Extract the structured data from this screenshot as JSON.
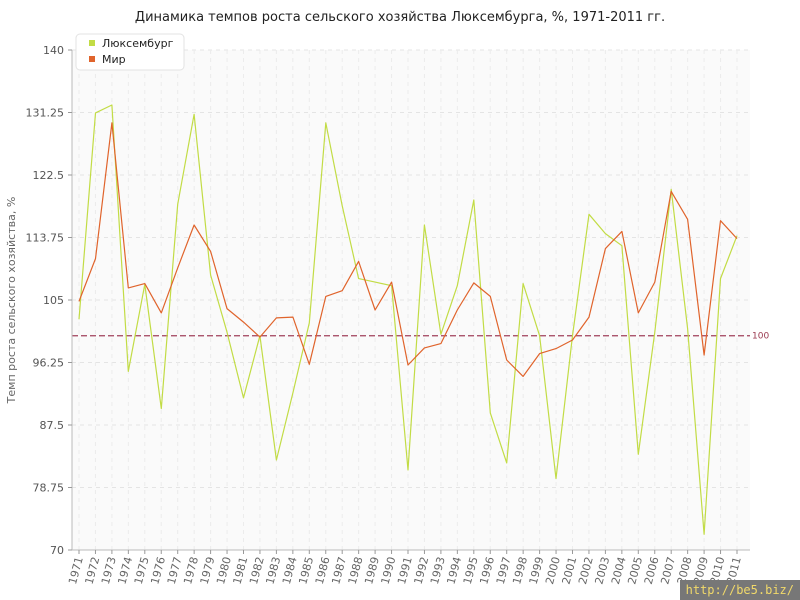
{
  "chart_data": {
    "type": "line",
    "title": "Динамика темпов роста сельского хозяйства Люксембурга, %, 1971-2011 гг.",
    "xlabel": "",
    "ylabel": "Темп роста сельского хозяйства, %",
    "ylim": [
      70,
      140
    ],
    "yticks": [
      "70",
      "78.75",
      "87.5",
      "96.25",
      "105",
      "113.75",
      "122.5",
      "131.25",
      "140"
    ],
    "grid": true,
    "legend_position": "top-left",
    "reference_line": {
      "value": 100,
      "label": "100"
    },
    "x": [
      "1971",
      "1972",
      "1973",
      "1974",
      "1975",
      "1976",
      "1977",
      "1978",
      "1979",
      "1980",
      "1981",
      "1982",
      "1983",
      "1984",
      "1985",
      "1986",
      "1987",
      "1988",
      "1989",
      "1990",
      "1991",
      "1992",
      "1993",
      "1994",
      "1995",
      "1996",
      "1997",
      "1998",
      "1999",
      "2000",
      "2001",
      "2002",
      "2003",
      "2004",
      "2005",
      "2006",
      "2007",
      "2008",
      "2009",
      "2010",
      "2011"
    ],
    "series": [
      {
        "name": "Люксембург",
        "color": "#c2dc45",
        "values": [
          102.3,
          131.2,
          132.3,
          95.0,
          107.2,
          89.8,
          118.4,
          131.0,
          108.5,
          100.5,
          91.3,
          100.0,
          82.6,
          92.0,
          101.8,
          129.8,
          118.2,
          108.0,
          107.5,
          107.0,
          81.2,
          115.5,
          100.2,
          107.0,
          119.0,
          89.2,
          82.2,
          107.3,
          100.0,
          80.0,
          100.0,
          117.0,
          114.3,
          112.6,
          83.4,
          100.5,
          120.5,
          101.0,
          72.2,
          108.0,
          114.0
        ]
      },
      {
        "name": "Мир",
        "color": "#e0642c",
        "values": [
          104.8,
          110.8,
          129.8,
          106.7,
          107.3,
          103.2,
          109.5,
          115.5,
          111.8,
          103.8,
          101.9,
          99.8,
          102.5,
          102.6,
          96.0,
          105.5,
          106.3,
          110.4,
          103.6,
          107.5,
          95.9,
          98.3,
          98.9,
          103.6,
          107.4,
          105.5,
          96.6,
          94.3,
          97.5,
          98.2,
          99.4,
          102.6,
          112.2,
          114.6,
          103.2,
          107.5,
          120.2,
          116.3,
          97.3,
          116.1,
          113.6
        ]
      }
    ]
  },
  "watermark": "http://be5.biz/"
}
